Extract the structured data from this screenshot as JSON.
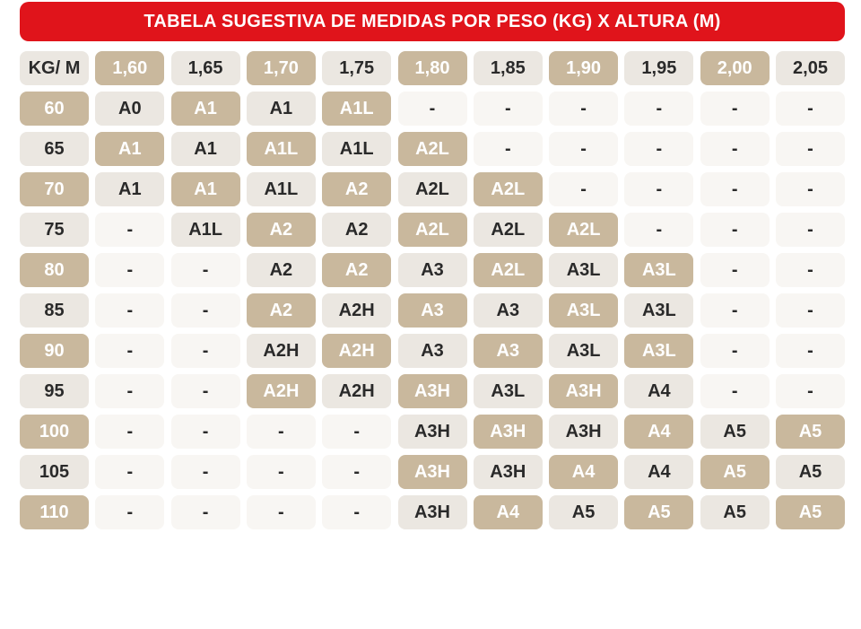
{
  "header": {
    "title": "TABELA SUGESTIVA DE MEDIDAS POR PESO (KG) X ALTURA (M)"
  },
  "table": {
    "columns": [
      "KG/ M",
      "1,60",
      "1,65",
      "1,70",
      "1,75",
      "1,80",
      "1,85",
      "1,90",
      "1,95",
      "2,00",
      "2,05"
    ],
    "rows": [
      [
        "60",
        "A0",
        "A1",
        "A1",
        "A1L",
        "-",
        "-",
        "-",
        "-",
        "-",
        "-"
      ],
      [
        "65",
        "A1",
        "A1",
        "A1L",
        "A1L",
        "A2L",
        "-",
        "-",
        "-",
        "-",
        "-"
      ],
      [
        "70",
        "A1",
        "A1",
        "A1L",
        "A2",
        "A2L",
        "A2L",
        "-",
        "-",
        "-",
        "-"
      ],
      [
        "75",
        "-",
        "A1L",
        "A2",
        "A2",
        "A2L",
        "A2L",
        "A2L",
        "-",
        "-",
        "-"
      ],
      [
        "80",
        "-",
        "-",
        "A2",
        "A2",
        "A3",
        "A2L",
        "A3L",
        "A3L",
        "-",
        "-"
      ],
      [
        "85",
        "-",
        "-",
        "A2",
        "A2H",
        "A3",
        "A3",
        "A3L",
        "A3L",
        "-",
        "-"
      ],
      [
        "90",
        "-",
        "-",
        "A2H",
        "A2H",
        "A3",
        "A3",
        "A3L",
        "A3L",
        "-",
        "-"
      ],
      [
        "95",
        "-",
        "-",
        "A2H",
        "A2H",
        "A3H",
        "A3L",
        "A3H",
        "A4",
        "-",
        "-"
      ],
      [
        "100",
        "-",
        "-",
        "-",
        "-",
        "A3H",
        "A3H",
        "A3H",
        "A4",
        "A5",
        "A5"
      ],
      [
        "105",
        "-",
        "-",
        "-",
        "-",
        "A3H",
        "A3H",
        "A4",
        "A4",
        "A5",
        "A5"
      ],
      [
        "110",
        "-",
        "-",
        "-",
        "-",
        "A3H",
        "A4",
        "A5",
        "A5",
        "A5",
        "A5"
      ]
    ]
  }
}
